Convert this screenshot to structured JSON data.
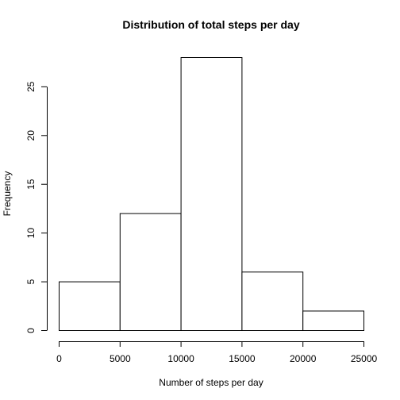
{
  "chart_data": {
    "type": "bar",
    "subtype": "histogram",
    "title": "Distribution of total steps per day",
    "xlabel": "Number of steps per day",
    "ylabel": "Frequency",
    "bins": [
      {
        "from": 0,
        "to": 5000,
        "count": 5
      },
      {
        "from": 5000,
        "to": 10000,
        "count": 12
      },
      {
        "from": 10000,
        "to": 15000,
        "count": 28
      },
      {
        "from": 15000,
        "to": 20000,
        "count": 6
      },
      {
        "from": 20000,
        "to": 25000,
        "count": 2
      }
    ],
    "xlim": [
      0,
      25000
    ],
    "ylim": [
      0,
      28
    ],
    "x_ticks": [
      0,
      5000,
      10000,
      15000,
      20000,
      25000
    ],
    "y_ticks": [
      0,
      5,
      10,
      15,
      20,
      25
    ],
    "grid": false,
    "legend": "none",
    "bar_fill": "#ffffff",
    "bar_stroke": "#000000"
  }
}
